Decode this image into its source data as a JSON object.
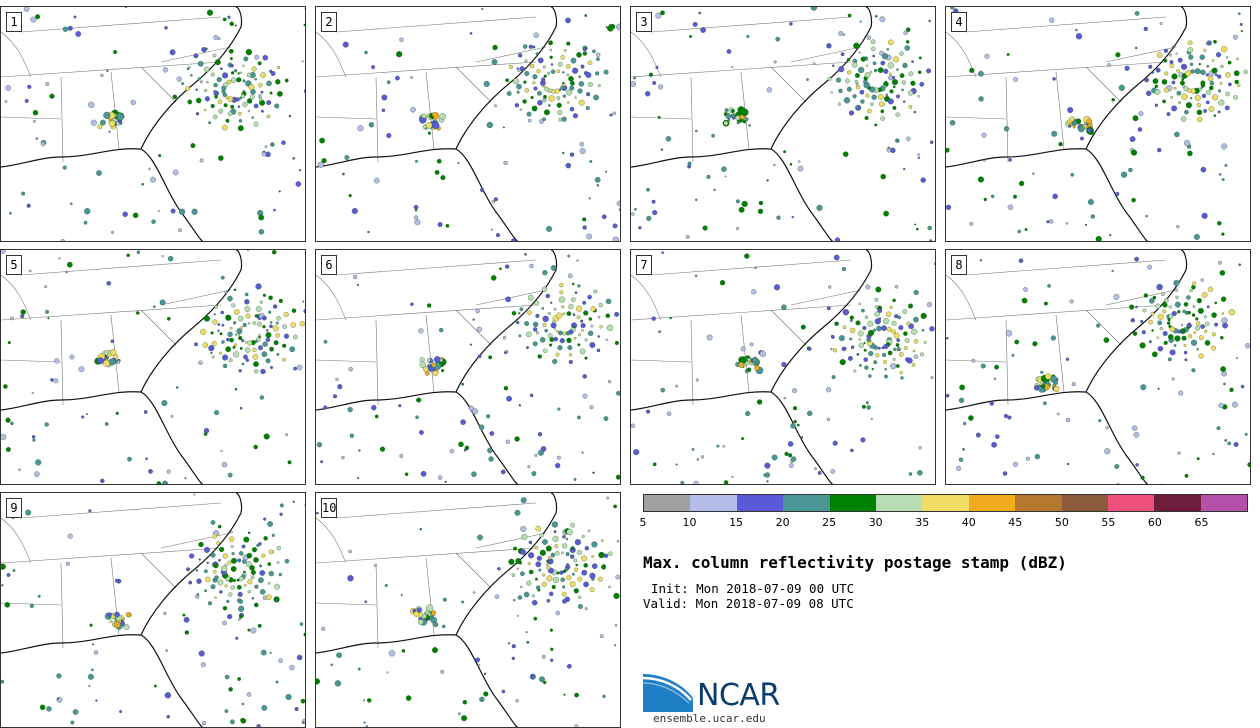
{
  "panels": [
    {
      "label": "1"
    },
    {
      "label": "2"
    },
    {
      "label": "3"
    },
    {
      "label": "4"
    },
    {
      "label": "5"
    },
    {
      "label": "6"
    },
    {
      "label": "7"
    },
    {
      "label": "8"
    },
    {
      "label": "9"
    },
    {
      "label": "10"
    }
  ],
  "colorbar": {
    "tick_labels": [
      "5",
      "10",
      "15",
      "20",
      "25",
      "30",
      "35",
      "40",
      "45",
      "50",
      "55",
      "60",
      "65"
    ],
    "colors": [
      "#a0a0a0",
      "#b4bce8",
      "#5a5ad8",
      "#4a9696",
      "#008000",
      "#b8dcb4",
      "#f0dc64",
      "#f0aa1e",
      "#b4782e",
      "#8c5a3c",
      "#f0507c",
      "#6e1e3c",
      "#b450aa"
    ]
  },
  "title": "Max. column reflectivity postage stamp (dBZ)",
  "init": "Init: Mon 2018-07-09 00 UTC",
  "valid": "Valid: Mon 2018-07-09 08 UTC",
  "logo": {
    "name": "NCAR",
    "url": "ensemble.ucar.edu"
  }
}
